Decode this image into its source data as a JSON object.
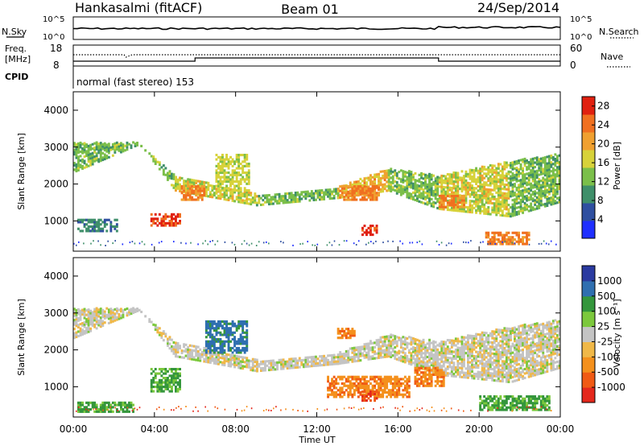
{
  "header": {
    "station": "Hankasalmi (fitACF)",
    "beam": "Beam 01",
    "date": "24/Sep/2014"
  },
  "nsky_panel": {
    "left_label": "N.Sky",
    "right_label": "N.Search",
    "tick_top": "10^5",
    "tick_bottom": "10^0",
    "tick_top_right": "10^5",
    "tick_bottom_right": "10^0"
  },
  "freq_panel": {
    "left_label_1": "Freq.",
    "left_label_2": "[MHz]",
    "right_label": "Nave",
    "tick_top_left": "18",
    "tick_bottom_left": "8",
    "tick_top_right": "60",
    "tick_bottom_right": "0"
  },
  "cpid_panel": {
    "label": "CPID",
    "text": "normal (fast stereo) 153"
  },
  "colors": {
    "power": [
      "#1f2fff",
      "#2f4fa0",
      "#3f8f6a",
      "#7bbf4a",
      "#d7d23a",
      "#f0a030",
      "#f07020",
      "#e02010"
    ],
    "velocity": [
      "#e4281c",
      "#f05a14",
      "#f4901c",
      "#f0b848",
      "#c4c4c4",
      "#7cc83c",
      "#34963c",
      "#2f6fb0",
      "#2a3aa0"
    ]
  },
  "chart_data": [
    {
      "type": "heatmap",
      "title": "",
      "ylabel": "Slant Range [km]",
      "xlabel": "",
      "ylim": [
        180,
        4500
      ],
      "yticks": [
        1000,
        2000,
        3000,
        4000
      ],
      "colorbar": {
        "label": "Power [dB]",
        "ticks": [
          4,
          8,
          12,
          16,
          20,
          24,
          28
        ],
        "range": [
          0,
          30
        ]
      },
      "bands": [
        {
          "t": [
            0,
            3.2
          ],
          "r_start": [
            2300,
            3050
          ],
          "r_end": [
            3100,
            3100
          ],
          "level": 3
        },
        {
          "t": [
            3.2,
            5.0
          ],
          "r_start": [
            3050,
            2200
          ],
          "r_end": [
            3100,
            1800
          ],
          "level": 3
        },
        {
          "t": [
            5.0,
            9.0
          ],
          "r_start": [
            2200,
            1700
          ],
          "r_end": [
            1800,
            1400
          ],
          "level": 4
        },
        {
          "t": [
            9.0,
            13.0
          ],
          "r_start": [
            1700,
            1900
          ],
          "r_end": [
            1400,
            1600
          ],
          "level": 3
        },
        {
          "t": [
            13.0,
            15.5
          ],
          "r_start": [
            1900,
            2400
          ],
          "r_end": [
            1600,
            1800
          ],
          "level": 5
        },
        {
          "t": [
            15.5,
            18.0
          ],
          "r_start": [
            2400,
            2200
          ],
          "r_end": [
            1800,
            1300
          ],
          "level": 3
        },
        {
          "t": [
            18.0,
            21.5
          ],
          "r_start": [
            2200,
            2600
          ],
          "r_end": [
            1300,
            1100
          ],
          "level": 4
        },
        {
          "t": [
            21.5,
            24.0
          ],
          "r_start": [
            2600,
            2800
          ],
          "r_end": [
            1100,
            1500
          ],
          "level": 3
        }
      ],
      "patches": [
        {
          "t": [
            3.8,
            5.2
          ],
          "r": [
            850,
            1200
          ],
          "level": 7
        },
        {
          "t": [
            5.3,
            6.4
          ],
          "r": [
            1550,
            1950
          ],
          "level": 6
        },
        {
          "t": [
            13.3,
            15.0
          ],
          "r": [
            1550,
            1950
          ],
          "level": 6
        },
        {
          "t": [
            14.2,
            14.9
          ],
          "r": [
            600,
            900
          ],
          "level": 7
        },
        {
          "t": [
            20.3,
            22.5
          ],
          "r": [
            350,
            700
          ],
          "level": 6
        },
        {
          "t": [
            18.0,
            19.3
          ],
          "r": [
            1350,
            1700
          ],
          "level": 6
        },
        {
          "t": [
            0.2,
            2.2
          ],
          "r": [
            700,
            1050
          ],
          "level": 2
        },
        {
          "t": [
            7.0,
            8.6
          ],
          "r": [
            1800,
            2800
          ],
          "level": 4
        }
      ]
    },
    {
      "type": "heatmap",
      "title": "",
      "ylabel": "Slant Range [km]",
      "xlabel": "Time UT",
      "ylim": [
        180,
        4500
      ],
      "yticks": [
        1000,
        2000,
        3000,
        4000
      ],
      "xticks": [
        "00:00",
        "04:00",
        "08:00",
        "12:00",
        "16:00",
        "20:00",
        "00:00"
      ],
      "xlim_hours": [
        0,
        24
      ],
      "colorbar": {
        "label": "Velocity [m s⁻¹]",
        "ticks": [
          "1000",
          "500",
          "100",
          "25",
          "-25",
          "-100",
          "-500",
          "-1000"
        ]
      },
      "bands": [
        {
          "t": [
            0,
            3.2
          ],
          "r_start": [
            2300,
            3050
          ],
          "r_end": [
            3100,
            3100
          ],
          "level": 4
        },
        {
          "t": [
            3.2,
            5.0
          ],
          "r_start": [
            3050,
            2200
          ],
          "r_end": [
            3100,
            1800
          ],
          "level": 4
        },
        {
          "t": [
            5.0,
            9.0
          ],
          "r_start": [
            2200,
            1700
          ],
          "r_end": [
            1800,
            1400
          ],
          "level": 4
        },
        {
          "t": [
            9.0,
            13.0
          ],
          "r_start": [
            1700,
            1900
          ],
          "r_end": [
            1400,
            1600
          ],
          "level": 4
        },
        {
          "t": [
            13.0,
            15.5
          ],
          "r_start": [
            1900,
            2400
          ],
          "r_end": [
            1600,
            1800
          ],
          "level": 4
        },
        {
          "t": [
            15.5,
            18.0
          ],
          "r_start": [
            2400,
            2200
          ],
          "r_end": [
            1800,
            1300
          ],
          "level": 4
        },
        {
          "t": [
            18.0,
            21.5
          ],
          "r_start": [
            2200,
            2600
          ],
          "r_end": [
            1300,
            1100
          ],
          "level": 4
        },
        {
          "t": [
            21.5,
            24.0
          ],
          "r_start": [
            2600,
            2800
          ],
          "r_end": [
            1100,
            1500
          ],
          "level": 4
        }
      ],
      "patches": [
        {
          "t": [
            3.8,
            5.2
          ],
          "r": [
            850,
            1500
          ],
          "level": 6
        },
        {
          "t": [
            0.2,
            3.0
          ],
          "r": [
            300,
            600
          ],
          "level": 6
        },
        {
          "t": [
            6.5,
            8.5
          ],
          "r": [
            1900,
            2800
          ],
          "level": 7
        },
        {
          "t": [
            12.5,
            16.5
          ],
          "r": [
            700,
            1300
          ],
          "level": 2
        },
        {
          "t": [
            14.2,
            14.9
          ],
          "r": [
            600,
            900
          ],
          "level": 1
        },
        {
          "t": [
            16.8,
            18.3
          ],
          "r": [
            1000,
            1500
          ],
          "level": 2
        },
        {
          "t": [
            20.0,
            23.5
          ],
          "r": [
            350,
            750
          ],
          "level": 6
        },
        {
          "t": [
            13.0,
            13.8
          ],
          "r": [
            2300,
            2600
          ],
          "level": 2
        }
      ]
    }
  ]
}
